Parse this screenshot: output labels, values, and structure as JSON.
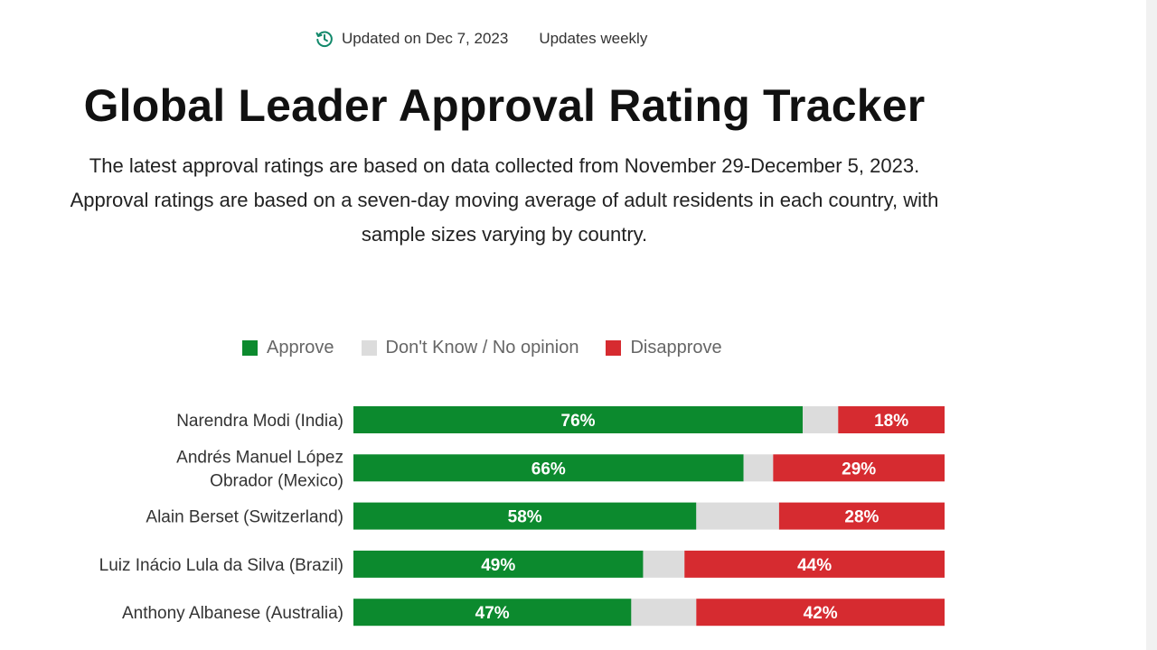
{
  "header": {
    "updated_label": "Updated on Dec 7, 2023",
    "frequency_label": "Updates weekly",
    "clock_icon": "history-clock-icon",
    "accent_color": "#12896b"
  },
  "title": "Global Leader Approval Rating Tracker",
  "subtitle": "The latest approval ratings are based on data collected from November 29-December 5, 2023. Approval ratings are based on a seven-day moving average of adult residents in each country, with sample sizes varying by country.",
  "legend": {
    "approve": "Approve",
    "dont_know": "Don't Know / No opinion",
    "disapprove": "Disapprove"
  },
  "colors": {
    "approve": "#0c8a2e",
    "dont_know": "#dcdcdc",
    "disapprove": "#d62b30"
  },
  "chart_data": {
    "type": "bar",
    "orientation": "horizontal-stacked",
    "unit": "%",
    "xlim": [
      0,
      100
    ],
    "series_names": [
      "Approve",
      "Don't Know / No opinion",
      "Disapprove"
    ],
    "rows": [
      {
        "label": [
          "Narendra Modi (India)"
        ],
        "approve": 76,
        "dont_know": 6,
        "disapprove": 18,
        "approve_label": "76%",
        "disapprove_label": "18%"
      },
      {
        "label": [
          "Andrés Manuel López",
          "Obrador (Mexico)"
        ],
        "approve": 66,
        "dont_know": 5,
        "disapprove": 29,
        "approve_label": "66%",
        "disapprove_label": "29%"
      },
      {
        "label": [
          "Alain Berset (Switzerland)"
        ],
        "approve": 58,
        "dont_know": 14,
        "disapprove": 28,
        "approve_label": "58%",
        "disapprove_label": "28%"
      },
      {
        "label": [
          "Luiz Inácio Lula da Silva (Brazil)"
        ],
        "approve": 49,
        "dont_know": 7,
        "disapprove": 44,
        "approve_label": "49%",
        "disapprove_label": "44%"
      },
      {
        "label": [
          "Anthony Albanese (Australia)"
        ],
        "approve": 47,
        "dont_know": 11,
        "disapprove": 42,
        "approve_label": "47%",
        "disapprove_label": "42%"
      }
    ]
  }
}
